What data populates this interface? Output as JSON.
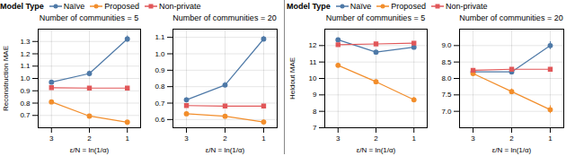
{
  "chart_data": [
    {
      "type": "line",
      "title": "Number of communities = 5",
      "xlabel": "ε/N = ln(1/α)",
      "ylabel": "Reconstruction MAE",
      "x": [
        3,
        2,
        1
      ],
      "xlim": [
        3.35,
        0.65
      ],
      "xticks": [
        3,
        2,
        1
      ],
      "ylim": [
        0.6,
        1.4
      ],
      "yticks": [
        0.7,
        0.8,
        0.9,
        {
          "value": 1.0,
          "label": "1.0"
        },
        1.1,
        1.2,
        1.3
      ],
      "grid": true,
      "legend": "top",
      "legend_title": "Model Type",
      "series": [
        {
          "name": "Naïve",
          "marker": "circle",
          "values": [
            0.97,
            1.04,
            1.32
          ],
          "errors": [
            0.015,
            0.02,
            0.025
          ]
        },
        {
          "name": "Proposed",
          "marker": "circle",
          "values": [
            0.81,
            0.695,
            0.645
          ],
          "errors": [
            0.012,
            0.012,
            0.012
          ]
        },
        {
          "name": "Non-private",
          "marker": "square",
          "values": [
            0.925,
            0.922,
            0.922
          ],
          "errors": [
            0.006,
            0.006,
            0.006
          ]
        }
      ]
    },
    {
      "type": "line",
      "title": "Number of communities = 20",
      "xlabel": "ε/N = ln(1/α)",
      "x": [
        3,
        2,
        1
      ],
      "xlim": [
        3.35,
        0.65
      ],
      "xticks": [
        3,
        2,
        1
      ],
      "ylim": [
        0.55,
        1.15
      ],
      "yticks": [
        0.6,
        0.7,
        0.8,
        0.9,
        {
          "value": 1.0,
          "label": "1.0"
        },
        1.1
      ],
      "grid": true,
      "series": [
        {
          "name": "Naïve",
          "marker": "circle",
          "values": [
            0.72,
            0.81,
            1.09
          ],
          "errors": [
            0.012,
            0.015,
            0.015
          ]
        },
        {
          "name": "Proposed",
          "marker": "circle",
          "values": [
            0.635,
            0.62,
            0.585
          ],
          "errors": [
            0.01,
            0.01,
            0.012
          ]
        },
        {
          "name": "Non-private",
          "marker": "square",
          "values": [
            0.685,
            0.682,
            0.682
          ],
          "errors": [
            0.005,
            0.005,
            0.005
          ]
        }
      ]
    },
    {
      "type": "line",
      "title": "Number of communities = 5",
      "xlabel": "ε/N = ln(1/α)",
      "ylabel": "Heldout MAE",
      "x": [
        3,
        2,
        1
      ],
      "xlim": [
        3.35,
        0.65
      ],
      "xticks": [
        3,
        2,
        1
      ],
      "ylim": [
        7.0,
        13.0
      ],
      "yticks": [
        7,
        8,
        9,
        10,
        11,
        12
      ],
      "grid": true,
      "legend": "top",
      "legend_title": "Model Type",
      "series": [
        {
          "name": "Naïve",
          "marker": "circle",
          "values": [
            12.35,
            11.6,
            11.9
          ],
          "errors": [
            0.06,
            0.06,
            0.06
          ]
        },
        {
          "name": "Proposed",
          "marker": "circle",
          "values": [
            10.8,
            9.8,
            8.7
          ],
          "errors": [
            0.12,
            0.12,
            0.15
          ]
        },
        {
          "name": "Non-private",
          "marker": "square",
          "values": [
            12.05,
            12.1,
            12.15
          ],
          "errors": [
            0.06,
            0.05,
            0.05
          ]
        }
      ]
    },
    {
      "type": "line",
      "title": "Number of communities = 20",
      "xlabel": "ε/N = ln(1/α)",
      "x": [
        3,
        2,
        1
      ],
      "xlim": [
        3.35,
        0.65
      ],
      "xticks": [
        3,
        2,
        1
      ],
      "ylim": [
        6.5,
        9.5
      ],
      "yticks": [
        {
          "value": 7.0,
          "label": "7.0"
        },
        7.5,
        {
          "value": 8.0,
          "label": "8.0"
        },
        8.5,
        {
          "value": 9.0,
          "label": "9.0"
        }
      ],
      "grid": true,
      "series": [
        {
          "name": "Naïve",
          "marker": "circle",
          "values": [
            8.2,
            8.2,
            9.0
          ],
          "errors": [
            0.06,
            0.06,
            0.12
          ]
        },
        {
          "name": "Proposed",
          "marker": "circle",
          "values": [
            8.15,
            7.6,
            7.05
          ],
          "errors": [
            0.06,
            0.08,
            0.12
          ]
        },
        {
          "name": "Non-private",
          "marker": "square",
          "values": [
            8.25,
            8.28,
            8.28
          ],
          "errors": [
            0.04,
            0.04,
            0.04
          ]
        }
      ]
    }
  ]
}
